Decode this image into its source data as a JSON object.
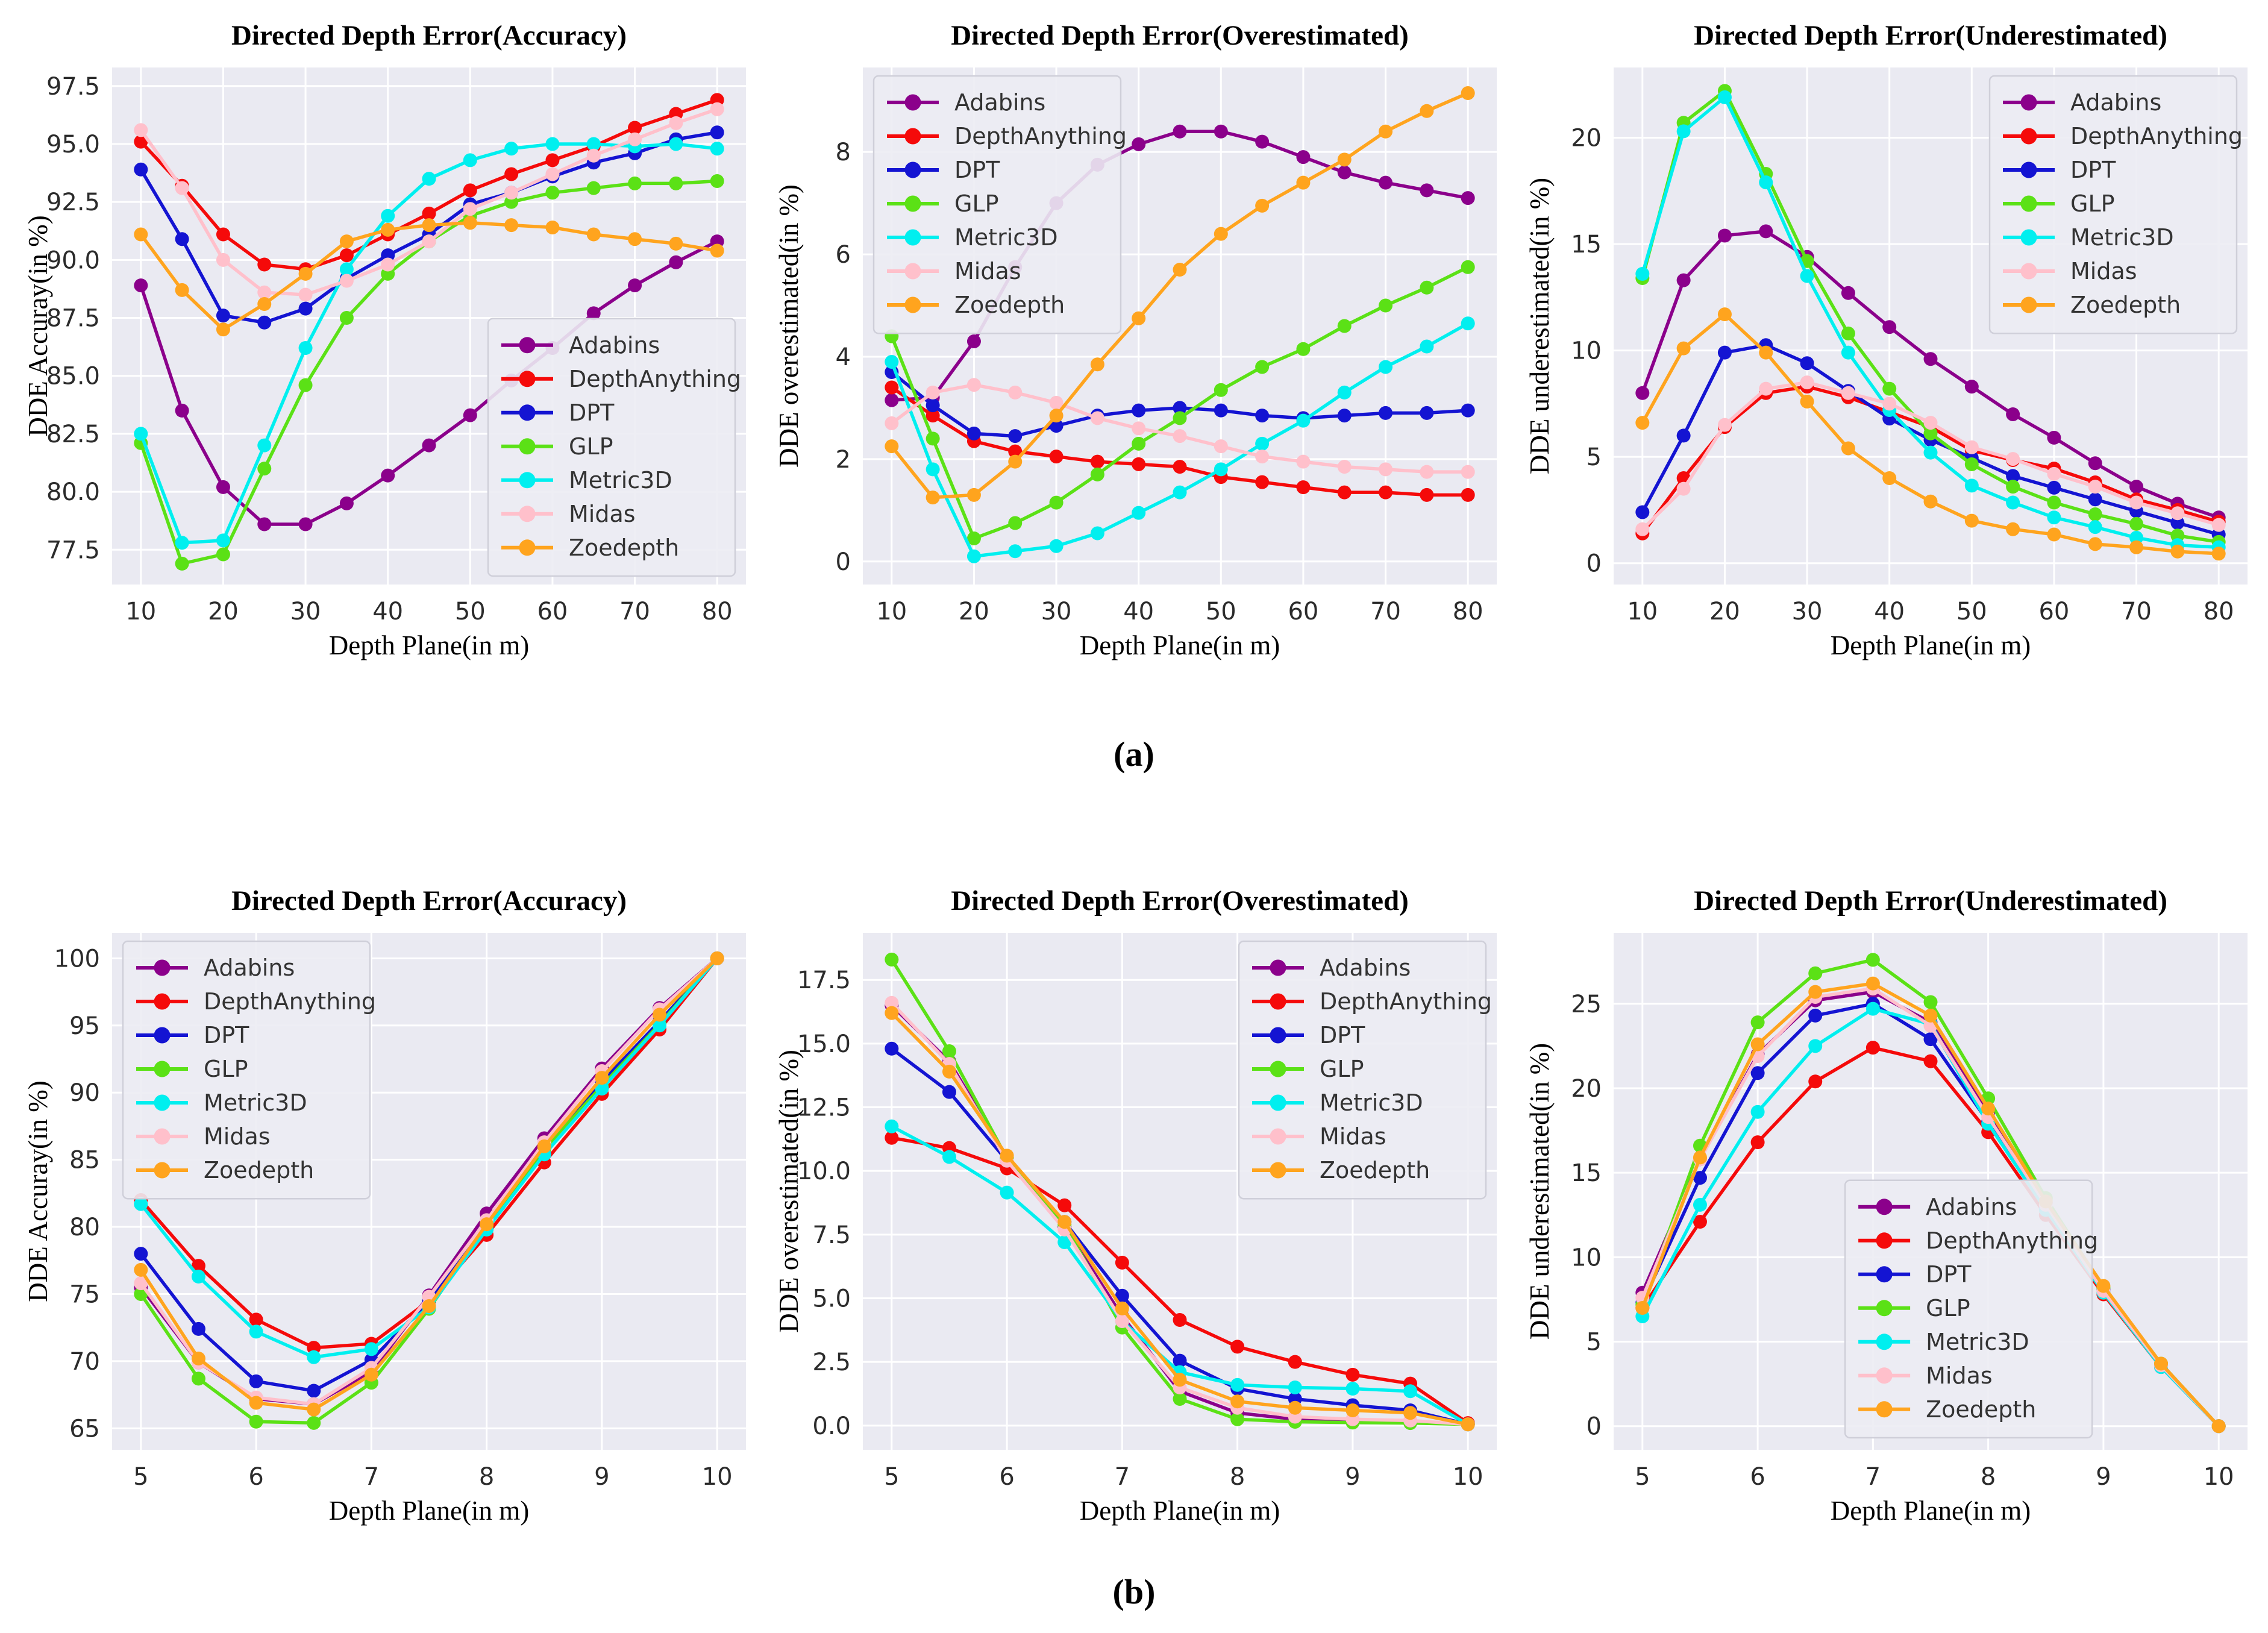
{
  "captions": {
    "a": "(a)",
    "b": "(b)"
  },
  "colors": {
    "figure_bg": "#ffffff",
    "plot_bg": "#eaeaf2",
    "grid": "#ffffff",
    "tick_text": "#2b2b2b",
    "label_text": "#000000",
    "legend_bg": "#ececf3",
    "legend_border": "#cfcfd9",
    "legend_text": "#333333"
  },
  "series_colors": {
    "Adabins": "#8B008B",
    "DepthAnything": "#F50A0A",
    "DPT": "#1414D2",
    "GLP": "#5BE116",
    "Metric3D": "#00EFEF",
    "Midas": "#FFC0CB",
    "Zoedepth": "#FFA41E"
  },
  "chart_data": [
    {
      "id": "a1",
      "type": "line",
      "title": "Directed Depth Error(Accuracy)",
      "xlabel": "Depth Plane(in m)",
      "ylabel": "DDE Accuray(in %)",
      "legend_pos": "lower right",
      "grid": true,
      "xlim": [
        6.5,
        83.5
      ],
      "ylim": [
        76.0,
        98.3
      ],
      "xticks": [
        10,
        20,
        30,
        40,
        50,
        60,
        70,
        80
      ],
      "xtick_labels": [
        "10",
        "20",
        "30",
        "40",
        "50",
        "60",
        "70",
        "80"
      ],
      "yticks": [
        77.5,
        80.0,
        82.5,
        85.0,
        87.5,
        90.0,
        92.5,
        95.0,
        97.5
      ],
      "ytick_labels": [
        "77.5",
        "80.0",
        "82.5",
        "85.0",
        "87.5",
        "90.0",
        "92.5",
        "95.0",
        "97.5"
      ],
      "x": [
        10,
        15,
        20,
        25,
        30,
        35,
        40,
        45,
        50,
        55,
        60,
        65,
        70,
        75,
        80
      ],
      "series": [
        {
          "name": "Adabins",
          "values": [
            88.9,
            83.5,
            80.2,
            78.6,
            78.6,
            79.5,
            80.7,
            82.0,
            83.3,
            84.8,
            86.2,
            87.7,
            88.9,
            89.9,
            90.8
          ]
        },
        {
          "name": "DepthAnything",
          "values": [
            95.1,
            93.2,
            91.1,
            89.8,
            89.6,
            90.2,
            91.1,
            92.0,
            93.0,
            93.7,
            94.3,
            94.9,
            95.7,
            96.3,
            96.9
          ]
        },
        {
          "name": "DPT",
          "values": [
            93.9,
            90.9,
            87.6,
            87.3,
            87.9,
            89.2,
            90.2,
            91.1,
            92.4,
            92.9,
            93.6,
            94.2,
            94.6,
            95.2,
            95.5
          ]
        },
        {
          "name": "GLP",
          "values": [
            82.1,
            76.9,
            77.3,
            81.0,
            84.6,
            87.5,
            89.4,
            90.8,
            91.9,
            92.5,
            92.9,
            93.1,
            93.3,
            93.3,
            93.4
          ]
        },
        {
          "name": "Metric3D",
          "values": [
            82.5,
            77.8,
            77.9,
            82.0,
            86.2,
            89.6,
            91.9,
            93.5,
            94.3,
            94.8,
            95.0,
            95.0,
            94.9,
            95.0,
            94.8
          ]
        },
        {
          "name": "Midas",
          "values": [
            95.6,
            93.1,
            90.0,
            88.6,
            88.5,
            89.1,
            89.8,
            90.8,
            92.2,
            92.9,
            93.7,
            94.5,
            95.2,
            95.9,
            96.5
          ]
        },
        {
          "name": "Zoedepth",
          "values": [
            91.1,
            88.7,
            87.0,
            88.1,
            89.4,
            90.8,
            91.3,
            91.5,
            91.6,
            91.5,
            91.4,
            91.1,
            90.9,
            90.7,
            90.4
          ]
        }
      ]
    },
    {
      "id": "a2",
      "type": "line",
      "title": "Directed Depth Error(Overestimated)",
      "xlabel": "Depth Plane(in m)",
      "ylabel": "DDE overestimated(in %)",
      "legend_pos": "upper left",
      "grid": true,
      "xlim": [
        6.5,
        83.5
      ],
      "ylim": [
        -0.45,
        9.65
      ],
      "xticks": [
        10,
        20,
        30,
        40,
        50,
        60,
        70,
        80
      ],
      "xtick_labels": [
        "10",
        "20",
        "30",
        "40",
        "50",
        "60",
        "70",
        "80"
      ],
      "yticks": [
        0,
        2,
        4,
        6,
        8
      ],
      "ytick_labels": [
        "0",
        "2",
        "4",
        "6",
        "8"
      ],
      "x": [
        10,
        15,
        20,
        25,
        30,
        35,
        40,
        45,
        50,
        55,
        60,
        65,
        70,
        75,
        80
      ],
      "series": [
        {
          "name": "Adabins",
          "values": [
            3.15,
            3.2,
            4.3,
            5.75,
            7.0,
            7.75,
            8.15,
            8.4,
            8.4,
            8.2,
            7.9,
            7.6,
            7.4,
            7.25,
            7.1
          ]
        },
        {
          "name": "DepthAnything",
          "values": [
            3.4,
            2.85,
            2.35,
            2.15,
            2.05,
            1.95,
            1.9,
            1.85,
            1.65,
            1.55,
            1.45,
            1.35,
            1.35,
            1.3,
            1.3
          ]
        },
        {
          "name": "DPT",
          "values": [
            3.7,
            3.05,
            2.5,
            2.45,
            2.65,
            2.85,
            2.95,
            3.0,
            2.95,
            2.85,
            2.8,
            2.85,
            2.9,
            2.9,
            2.95
          ]
        },
        {
          "name": "GLP",
          "values": [
            4.4,
            2.4,
            0.45,
            0.75,
            1.15,
            1.7,
            2.3,
            2.8,
            3.35,
            3.8,
            4.15,
            4.6,
            5.0,
            5.35,
            5.75
          ]
        },
        {
          "name": "Metric3D",
          "values": [
            3.9,
            1.8,
            0.1,
            0.2,
            0.3,
            0.55,
            0.95,
            1.35,
            1.8,
            2.3,
            2.75,
            3.3,
            3.8,
            4.2,
            4.65
          ]
        },
        {
          "name": "Midas",
          "values": [
            2.7,
            3.3,
            3.45,
            3.3,
            3.1,
            2.8,
            2.6,
            2.45,
            2.25,
            2.05,
            1.95,
            1.85,
            1.8,
            1.75,
            1.75
          ]
        },
        {
          "name": "Zoedepth",
          "values": [
            2.25,
            1.25,
            1.3,
            1.95,
            2.85,
            3.85,
            4.75,
            5.7,
            6.4,
            6.95,
            7.4,
            7.85,
            8.4,
            8.8,
            9.15
          ]
        }
      ]
    },
    {
      "id": "a3",
      "type": "line",
      "title": "Directed Depth Error(Underestimated)",
      "xlabel": "Depth Plane(in m)",
      "ylabel": "DDE underestimated(in %)",
      "legend_pos": "upper right",
      "grid": true,
      "xlim": [
        6.5,
        83.5
      ],
      "ylim": [
        -1.0,
        23.3
      ],
      "xticks": [
        10,
        20,
        30,
        40,
        50,
        60,
        70,
        80
      ],
      "xtick_labels": [
        "10",
        "20",
        "30",
        "40",
        "50",
        "60",
        "70",
        "80"
      ],
      "yticks": [
        0,
        5,
        10,
        15,
        20
      ],
      "ytick_labels": [
        "0",
        "5",
        "10",
        "15",
        "20"
      ],
      "x": [
        10,
        15,
        20,
        25,
        30,
        35,
        40,
        45,
        50,
        55,
        60,
        65,
        70,
        75,
        80
      ],
      "series": [
        {
          "name": "Adabins",
          "values": [
            8.0,
            13.3,
            15.4,
            15.6,
            14.4,
            12.7,
            11.1,
            9.6,
            8.3,
            7.0,
            5.9,
            4.7,
            3.6,
            2.8,
            2.15
          ]
        },
        {
          "name": "DepthAnything",
          "values": [
            1.4,
            4.0,
            6.4,
            8.0,
            8.3,
            7.8,
            7.1,
            6.4,
            5.3,
            4.85,
            4.45,
            3.8,
            3.0,
            2.5,
            1.95
          ]
        },
        {
          "name": "DPT",
          "values": [
            2.4,
            6.0,
            9.9,
            10.25,
            9.4,
            8.1,
            6.8,
            5.8,
            4.95,
            4.1,
            3.55,
            3.0,
            2.45,
            1.9,
            1.35
          ]
        },
        {
          "name": "GLP",
          "values": [
            13.4,
            20.7,
            22.2,
            18.3,
            14.2,
            10.8,
            8.2,
            6.1,
            4.65,
            3.6,
            2.85,
            2.3,
            1.85,
            1.3,
            1.0
          ]
        },
        {
          "name": "Metric3D",
          "values": [
            13.6,
            20.3,
            21.9,
            17.9,
            13.5,
            9.9,
            7.2,
            5.2,
            3.65,
            2.85,
            2.15,
            1.7,
            1.2,
            0.85,
            0.75
          ]
        },
        {
          "name": "Midas",
          "values": [
            1.6,
            3.5,
            6.5,
            8.2,
            8.5,
            8.0,
            7.5,
            6.6,
            5.45,
            4.9,
            4.2,
            3.6,
            2.85,
            2.35,
            1.8
          ]
        },
        {
          "name": "Zoedepth",
          "values": [
            6.6,
            10.1,
            11.7,
            9.9,
            7.6,
            5.4,
            4.0,
            2.9,
            2.0,
            1.6,
            1.35,
            0.9,
            0.75,
            0.55,
            0.45
          ]
        }
      ]
    },
    {
      "id": "b1",
      "type": "line",
      "title": "Directed Depth Error(Accuracy)",
      "xlabel": "Depth Plane(in m)",
      "ylabel": "DDE Accuray(in %)",
      "legend_pos": "upper left",
      "grid": true,
      "xlim": [
        4.75,
        10.25
      ],
      "ylim": [
        63.4,
        101.9
      ],
      "xticks": [
        5,
        6,
        7,
        8,
        9,
        10
      ],
      "xtick_labels": [
        "5",
        "6",
        "7",
        "8",
        "9",
        "10"
      ],
      "yticks": [
        65,
        70,
        75,
        80,
        85,
        90,
        95,
        100
      ],
      "ytick_labels": [
        "65",
        "70",
        "75",
        "80",
        "85",
        "90",
        "95",
        "100"
      ],
      "x": [
        5,
        5.5,
        6,
        6.5,
        7,
        7.5,
        8,
        8.5,
        9,
        9.5,
        10
      ],
      "series": [
        {
          "name": "Adabins",
          "values": [
            75.5,
            69.9,
            67.2,
            66.8,
            69.2,
            74.9,
            81.0,
            86.6,
            91.8,
            96.3,
            100
          ]
        },
        {
          "name": "DepthAnything",
          "values": [
            82.0,
            77.1,
            73.1,
            71.0,
            71.3,
            74.5,
            79.4,
            84.8,
            89.9,
            94.7,
            100
          ]
        },
        {
          "name": "DPT",
          "values": [
            78.0,
            72.4,
            68.5,
            67.8,
            70.1,
            74.5,
            80.2,
            85.9,
            90.8,
            95.3,
            100
          ]
        },
        {
          "name": "GLP",
          "values": [
            75.0,
            68.7,
            65.5,
            65.4,
            68.4,
            73.9,
            80.1,
            85.8,
            90.5,
            95.1,
            100
          ]
        },
        {
          "name": "Metric3D",
          "values": [
            81.7,
            76.3,
            72.2,
            70.3,
            70.9,
            74.0,
            79.8,
            85.4,
            90.3,
            95.0,
            100
          ]
        },
        {
          "name": "Midas",
          "values": [
            75.8,
            69.9,
            67.3,
            66.8,
            69.5,
            74.8,
            80.5,
            86.3,
            91.6,
            96.2,
            100
          ]
        },
        {
          "name": "Zoedepth",
          "values": [
            76.8,
            70.2,
            66.9,
            66.4,
            69.0,
            74.1,
            80.2,
            86.0,
            91.1,
            95.8,
            100
          ]
        }
      ]
    },
    {
      "id": "b2",
      "type": "line",
      "title": "Directed Depth Error(Overestimated)",
      "xlabel": "Depth Plane(in m)",
      "ylabel": "DDE overestimated(in %)",
      "legend_pos": "upper right",
      "grid": true,
      "xlim": [
        4.75,
        10.25
      ],
      "ylim": [
        -0.95,
        19.35
      ],
      "xticks": [
        5,
        6,
        7,
        8,
        9,
        10
      ],
      "xtick_labels": [
        "5",
        "6",
        "7",
        "8",
        "9",
        "10"
      ],
      "yticks": [
        0.0,
        2.5,
        5.0,
        7.5,
        10.0,
        12.5,
        15.0,
        17.5
      ],
      "ytick_labels": [
        "0.0",
        "2.5",
        "5.0",
        "7.5",
        "10.0",
        "12.5",
        "15.0",
        "17.5"
      ],
      "x": [
        5,
        5.5,
        6,
        6.5,
        7,
        7.5,
        8,
        8.5,
        9,
        9.5,
        10
      ],
      "series": [
        {
          "name": "Adabins",
          "values": [
            16.5,
            14.3,
            10.5,
            7.8,
            4.3,
            1.35,
            0.5,
            0.25,
            0.2,
            0.18,
            0.05
          ]
        },
        {
          "name": "DepthAnything",
          "values": [
            11.3,
            10.9,
            10.1,
            8.65,
            6.4,
            4.15,
            3.1,
            2.5,
            2.0,
            1.65,
            0.1
          ]
        },
        {
          "name": "DPT",
          "values": [
            14.8,
            13.1,
            10.4,
            8.0,
            5.1,
            2.55,
            1.45,
            1.05,
            0.8,
            0.6,
            0.05
          ]
        },
        {
          "name": "GLP",
          "values": [
            18.3,
            14.7,
            10.5,
            7.9,
            3.85,
            1.05,
            0.25,
            0.15,
            0.12,
            0.1,
            0.05
          ]
        },
        {
          "name": "Metric3D",
          "values": [
            11.75,
            10.55,
            9.15,
            7.2,
            4.1,
            2.1,
            1.6,
            1.5,
            1.45,
            1.35,
            0.05
          ]
        },
        {
          "name": "Midas",
          "values": [
            16.6,
            14.2,
            10.4,
            7.7,
            4.1,
            1.5,
            0.7,
            0.35,
            0.25,
            0.2,
            0.05
          ]
        },
        {
          "name": "Zoedepth",
          "values": [
            16.2,
            13.9,
            10.6,
            8.0,
            4.6,
            1.8,
            0.95,
            0.7,
            0.6,
            0.5,
            0.05
          ]
        }
      ]
    },
    {
      "id": "b3",
      "type": "line",
      "title": "Directed Depth Error(Underestimated)",
      "xlabel": "Depth Plane(in m)",
      "ylabel": "DDE underestimated(in %)",
      "legend_pos": "lower center",
      "grid": true,
      "xlim": [
        4.75,
        10.25
      ],
      "ylim": [
        -1.4,
        29.2
      ],
      "xticks": [
        5,
        6,
        7,
        8,
        9,
        10
      ],
      "xtick_labels": [
        "5",
        "6",
        "7",
        "8",
        "9",
        "10"
      ],
      "yticks": [
        0,
        5,
        10,
        15,
        20,
        25
      ],
      "ytick_labels": [
        "0",
        "5",
        "10",
        "15",
        "20",
        "25"
      ],
      "x": [
        5,
        5.5,
        6,
        6.5,
        7,
        7.5,
        8,
        8.5,
        9,
        9.5,
        10
      ],
      "series": [
        {
          "name": "Adabins",
          "values": [
            7.9,
            15.8,
            22.0,
            25.2,
            25.7,
            23.9,
            18.5,
            13.2,
            8.1,
            3.6,
            0.0
          ]
        },
        {
          "name": "DepthAnything",
          "values": [
            7.0,
            12.1,
            16.8,
            20.4,
            22.4,
            21.6,
            17.4,
            12.5,
            7.8,
            3.5,
            0.0
          ]
        },
        {
          "name": "DPT",
          "values": [
            7.3,
            14.7,
            20.9,
            24.3,
            25.0,
            22.9,
            18.0,
            12.9,
            8.0,
            3.6,
            0.0
          ]
        },
        {
          "name": "GLP",
          "values": [
            7.2,
            16.6,
            23.9,
            26.8,
            27.6,
            25.1,
            19.4,
            13.5,
            8.2,
            3.7,
            0.0
          ]
        },
        {
          "name": "Metric3D",
          "values": [
            6.5,
            13.1,
            18.6,
            22.5,
            24.7,
            23.8,
            17.9,
            12.8,
            7.9,
            3.5,
            0.0
          ]
        },
        {
          "name": "Midas",
          "values": [
            7.6,
            15.8,
            21.9,
            25.4,
            25.9,
            23.7,
            18.3,
            13.1,
            8.0,
            3.6,
            0.0
          ]
        },
        {
          "name": "Zoedepth",
          "values": [
            7.0,
            15.9,
            22.6,
            25.7,
            26.2,
            24.3,
            18.8,
            13.3,
            8.3,
            3.7,
            0.0
          ]
        }
      ]
    }
  ]
}
